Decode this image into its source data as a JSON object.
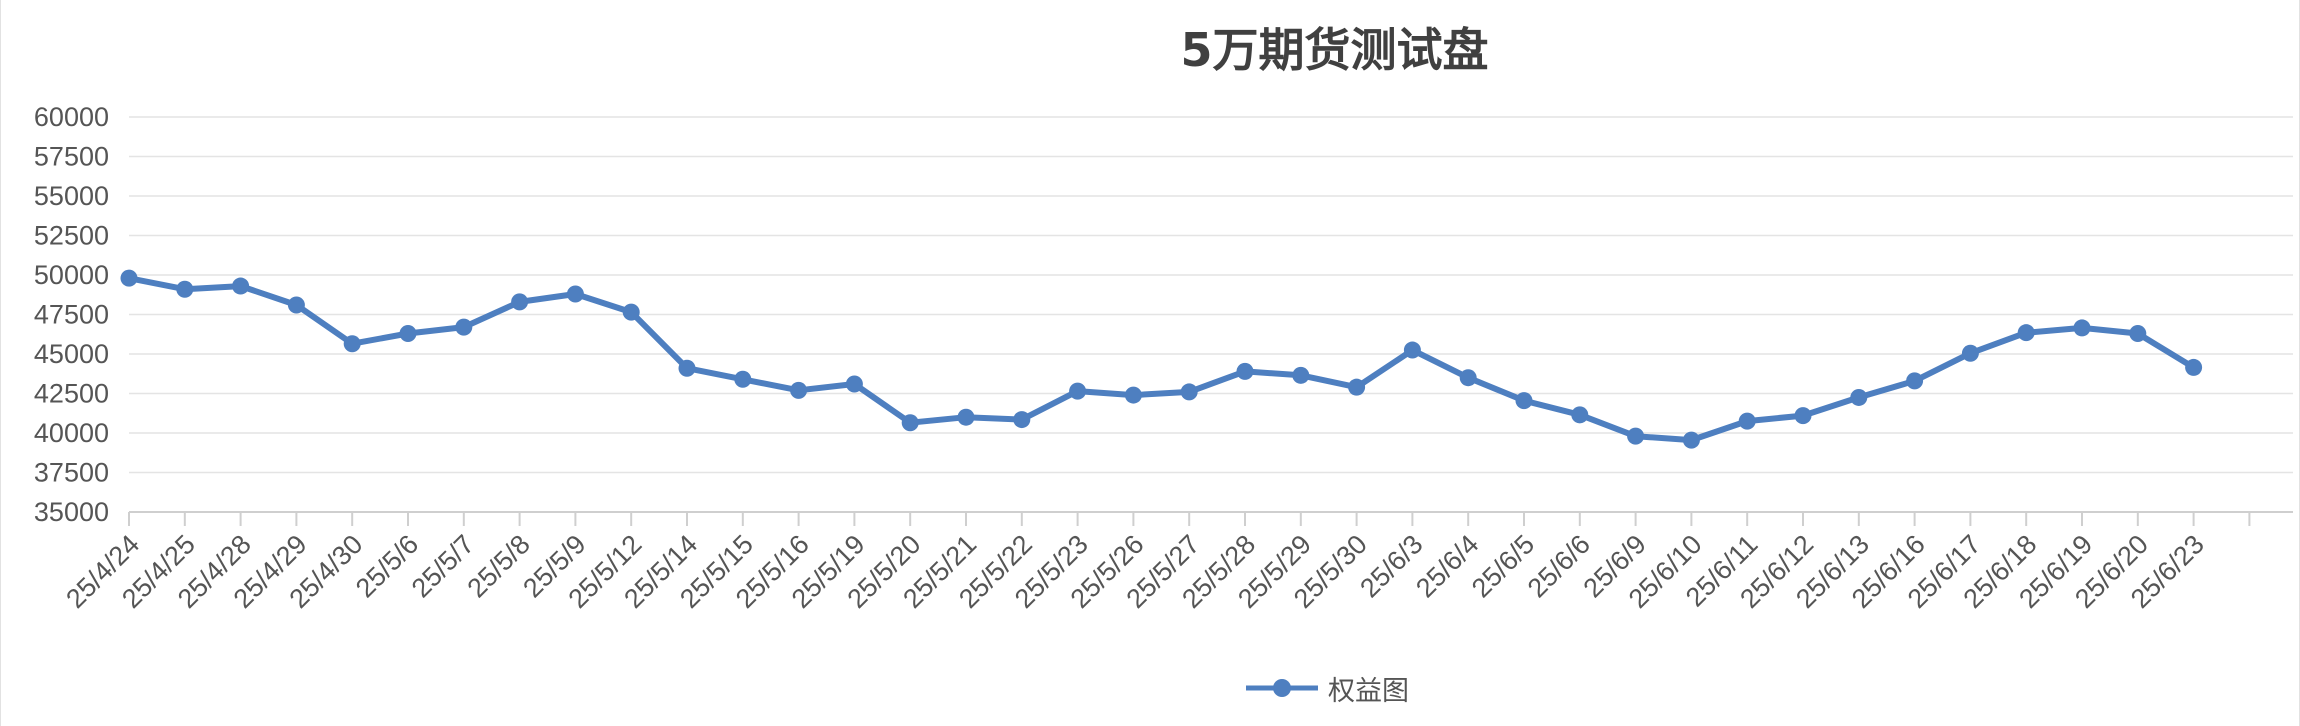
{
  "chart_data": {
    "type": "line",
    "title": "5万期货测试盘",
    "xlabel": "",
    "ylabel": "",
    "ylim": [
      35000,
      60000
    ],
    "yticks": [
      "35000",
      "37500",
      "40000",
      "42500",
      "45000",
      "47500",
      "50000",
      "52500",
      "55000",
      "57500",
      "60000"
    ],
    "grid": true,
    "legend_position": "bottom",
    "categories": [
      "25/4/24",
      "25/4/25",
      "25/4/28",
      "25/4/29",
      "25/4/30",
      "25/5/6",
      "25/5/7",
      "25/5/8",
      "25/5/9",
      "25/5/12",
      "25/5/14",
      "25/5/15",
      "25/5/16",
      "25/5/19",
      "25/5/20",
      "25/5/21",
      "25/5/22",
      "25/5/23",
      "25/5/26",
      "25/5/27",
      "25/5/28",
      "25/5/29",
      "25/5/30",
      "25/6/3",
      "25/6/4",
      "25/6/5",
      "25/6/6",
      "25/6/9",
      "25/6/10",
      "25/6/11",
      "25/6/12",
      "25/6/13",
      "25/6/16",
      "25/6/17",
      "25/6/18",
      "25/6/19",
      "25/6/20",
      "25/6/23"
    ],
    "series": [
      {
        "name": "权益图",
        "color": "#4e7fc0",
        "values": [
          49800,
          49100,
          49300,
          48100,
          45650,
          46300,
          46700,
          48300,
          48800,
          47650,
          44100,
          43400,
          42700,
          43100,
          40650,
          41000,
          40850,
          42650,
          42400,
          42600,
          43900,
          43650,
          42900,
          45250,
          43500,
          42050,
          41150,
          39800,
          39550,
          40750,
          41100,
          42250,
          43300,
          45050,
          46350,
          46650,
          46300,
          44150
        ]
      }
    ]
  }
}
